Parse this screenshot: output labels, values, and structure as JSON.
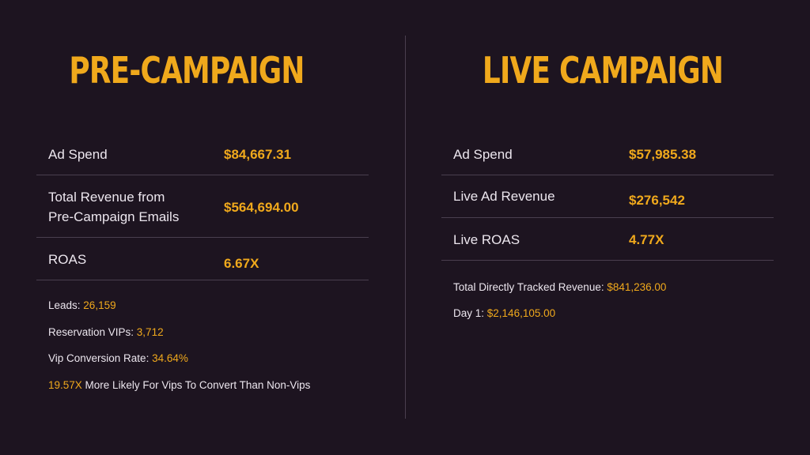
{
  "colors": {
    "background": "#1d1420",
    "accent": "#f0a91c",
    "text": "#ece6ee",
    "divider": "#4a3f4f"
  },
  "pre_campaign": {
    "title": "PRE-CAMPAIGN",
    "rows": [
      {
        "label": "Ad Spend",
        "value": "$84,667.31"
      },
      {
        "label": "Total Revenue from Pre-Campaign Emails",
        "label_line1": "Total Revenue from",
        "label_line2": "Pre-Campaign Emails",
        "value": "$564,694.00"
      },
      {
        "label": "ROAS",
        "value": "6.67X"
      }
    ],
    "notes": [
      {
        "prefix": "Leads: ",
        "highlight": "26,159",
        "suffix": ""
      },
      {
        "prefix": "Reservation VIPs: ",
        "highlight": "3,712",
        "suffix": ""
      },
      {
        "prefix": "Vip Conversion Rate: ",
        "highlight": "34.64%",
        "suffix": ""
      },
      {
        "prefix": "",
        "highlight": "19.57X",
        "suffix": " More Likely For Vips To Convert Than Non-Vips"
      }
    ]
  },
  "live_campaign": {
    "title": "LIVE CAMPAIGN",
    "rows": [
      {
        "label": "Ad Spend",
        "value": "$57,985.38"
      },
      {
        "label": "Live Ad Revenue",
        "value": "$276,542"
      },
      {
        "label": "Live ROAS",
        "value": "4.77X"
      }
    ],
    "notes": [
      {
        "prefix": "Total Directly Tracked Revenue: ",
        "highlight": "$841,236.00",
        "suffix": ""
      },
      {
        "prefix": "Day 1: ",
        "highlight": "$2,146,105.00",
        "suffix": ""
      }
    ]
  }
}
